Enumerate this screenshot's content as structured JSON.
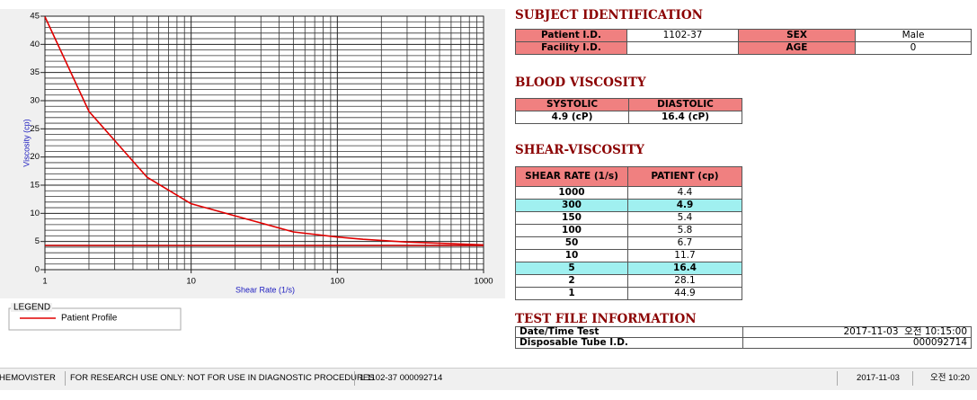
{
  "chart_data": {
    "type": "line",
    "xlabel": "Shear Rate (1/s)",
    "ylabel": "Viscosity (cp)",
    "x": [
      1,
      2,
      5,
      10,
      50,
      100,
      150,
      300,
      1000
    ],
    "series": [
      {
        "name": "Patient Profile",
        "color": "#e00000",
        "values": [
          44.9,
          28.1,
          16.4,
          11.7,
          6.7,
          5.8,
          5.4,
          4.9,
          4.4
        ]
      },
      {
        "color": "#c00000",
        "x": [
          1,
          1000
        ],
        "values": [
          4.3,
          4.3
        ]
      }
    ],
    "xscale": "log",
    "xlim": [
      1,
      1000
    ],
    "xticks": [
      1,
      10,
      100,
      1000
    ],
    "xminor": [
      2,
      3,
      4,
      5,
      6,
      7,
      8,
      9,
      20,
      30,
      40,
      50,
      60,
      70,
      80,
      90,
      200,
      300,
      400,
      500,
      600,
      700,
      800,
      900
    ],
    "ylim": [
      0,
      45
    ],
    "yticks": [
      0,
      5,
      10,
      15,
      20,
      25,
      30,
      35,
      40,
      45
    ],
    "yminor": [
      1,
      2,
      3,
      4,
      6,
      7,
      8,
      9,
      11,
      12,
      13,
      14,
      16,
      17,
      18,
      19,
      21,
      22,
      23,
      24,
      26,
      27,
      28,
      29,
      31,
      32,
      33,
      34,
      36,
      37,
      38,
      39,
      41,
      42,
      43,
      44
    ],
    "grid": true,
    "legend_title": "LEGEND"
  },
  "subject": {
    "title": "SUBJECT IDENTIFICATION",
    "patient_id_label": "Patient I.D.",
    "patient_id": "1102-37",
    "sex_label": "SEX",
    "sex": "Male",
    "facility_label": "Facility I.D.",
    "age_label": "AGE",
    "age": "0"
  },
  "blood": {
    "title": "BLOOD VISCOSITY",
    "headers": [
      "SYSTOLIC",
      "DIASTOLIC"
    ],
    "values": [
      "4.9 (cP)",
      "16.4 (cP)"
    ]
  },
  "shear": {
    "title": "SHEAR-VISCOSITY",
    "headers": [
      "SHEAR RATE (1/s)",
      "PATIENT (cp)"
    ],
    "rows": [
      [
        "1000",
        "4.4"
      ],
      [
        "300",
        "4.9"
      ],
      [
        "150",
        "5.4"
      ],
      [
        "100",
        "5.8"
      ],
      [
        "50",
        "6.7"
      ],
      [
        "10",
        "11.7"
      ],
      [
        "5",
        "16.4"
      ],
      [
        "2",
        "28.1"
      ],
      [
        "1",
        "44.9"
      ]
    ],
    "highlight_rows": [
      1,
      6
    ],
    "highlight_color": "#a0f0f0"
  },
  "test_file": {
    "title": "TEST FILE INFORMATION",
    "rows": [
      [
        "Date/Time Test",
        "2017-11-03  오전 10:15:00"
      ],
      [
        "Disposable Tube I.D.",
        "000092714"
      ]
    ]
  },
  "status_bar": [
    "HEMOVISTER",
    "FOR RESEARCH USE ONLY: NOT FOR USE IN DIAGNOSTIC PROCEDURES",
    "1  1102-37  000092714",
    "2017-11-03",
    "오전 10:20"
  ]
}
